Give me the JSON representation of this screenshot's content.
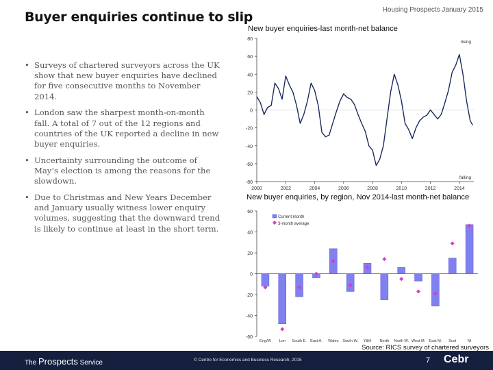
{
  "header": {
    "title": "Buyer enquiries continue to slip",
    "report_label": "Housing Prospects January 2015"
  },
  "bullets": [
    "Surveys of chartered surveyors across the UK show that new buyer enquiries have declined for five consecutive months to November 2014.",
    "London saw the sharpest month-on-month fall. A total of 7 out of the 12 regions and countries of the UK reported a decline in new buyer enquiries.",
    "Uncertainty surrounding the outcome of May’s election is among the reasons for the slowdown.",
    "Due to Christmas and New Years December and January usually witness lower enquiry volumes, suggesting that the downward trend is likely to continue at least in the short term."
  ],
  "bullet_symbol": "•",
  "colors": {
    "line": "#1b2a5e",
    "bar": "#8080f0",
    "bar_edge": "#5a5ad0",
    "marker": "#d63cc8",
    "footer": "#15203f"
  },
  "chart_data": [
    {
      "type": "line",
      "title": "New buyer enquiries-last month-net balance",
      "ylim": [
        -80,
        80
      ],
      "yticks": [
        80,
        60,
        40,
        20,
        0,
        -20,
        -40,
        -60,
        -80
      ],
      "xlim": [
        2000,
        2015
      ],
      "xticks": [
        "2000",
        "2002",
        "2004",
        "2006",
        "2008",
        "2010",
        "2012",
        "2014"
      ],
      "annotations": {
        "top": "rising",
        "bottom": "falling"
      },
      "series": [
        {
          "x": [
            2000.0,
            2000.25,
            2000.5,
            2000.75,
            2001.0,
            2001.25,
            2001.5,
            2001.75,
            2002.0,
            2002.25,
            2002.5,
            2002.75,
            2003.0,
            2003.25,
            2003.5,
            2003.75,
            2004.0,
            2004.25,
            2004.5,
            2004.75,
            2005.0,
            2005.25,
            2005.5,
            2005.75,
            2006.0,
            2006.25,
            2006.5,
            2006.75,
            2007.0,
            2007.25,
            2007.5,
            2007.75,
            2008.0,
            2008.25,
            2008.5,
            2008.75,
            2009.0,
            2009.25,
            2009.5,
            2009.75,
            2010.0,
            2010.25,
            2010.5,
            2010.75,
            2011.0,
            2011.25,
            2011.5,
            2011.75,
            2012.0,
            2012.25,
            2012.5,
            2012.75,
            2013.0,
            2013.25,
            2013.5,
            2013.75,
            2014.0,
            2014.25,
            2014.5,
            2014.75,
            2014.92
          ],
          "y": [
            15,
            8,
            -5,
            3,
            5,
            30,
            24,
            12,
            38,
            28,
            20,
            5,
            -15,
            -5,
            10,
            30,
            22,
            5,
            -25,
            -30,
            -28,
            -15,
            -2,
            10,
            18,
            14,
            12,
            6,
            -5,
            -15,
            -24,
            -40,
            -45,
            -62,
            -55,
            -40,
            -10,
            20,
            40,
            28,
            10,
            -15,
            -22,
            -32,
            -20,
            -12,
            -8,
            -6,
            0,
            -5,
            -10,
            -5,
            8,
            22,
            42,
            50,
            62,
            40,
            10,
            -12,
            -17
          ]
        }
      ]
    },
    {
      "type": "bar",
      "title": "New buyer enquiries, by region, Nov 2014-last month-net balance",
      "ylim": [
        -60,
        60
      ],
      "yticks": [
        60,
        40,
        20,
        0,
        -20,
        -40,
        -60
      ],
      "categories": [
        "Eng/W",
        "Lon",
        "South E.",
        "East A.",
        "Wales",
        "South W.",
        "Y&H",
        "North",
        "North W.",
        "West M.",
        "East M.",
        "Scot",
        "NI"
      ],
      "series": [
        {
          "name": "Current month",
          "values": [
            -12,
            -48,
            -22,
            -4,
            24,
            -17,
            10,
            -25,
            6,
            -7,
            -31,
            15,
            47
          ]
        },
        {
          "name": "3-month average",
          "values": [
            -13,
            -53,
            -13,
            0,
            12,
            -11,
            6,
            14,
            -5,
            -17,
            -19,
            29,
            46
          ]
        }
      ],
      "source": "Source:  RICS survey of chartered surveyors"
    }
  ],
  "footer": {
    "brand_prefix": "The",
    "brand_main": "Prospects",
    "brand_suffix": "Service",
    "copyright": "© Centre for Economics and Business Research, 2015",
    "page": "7",
    "logo": "Cebr"
  }
}
